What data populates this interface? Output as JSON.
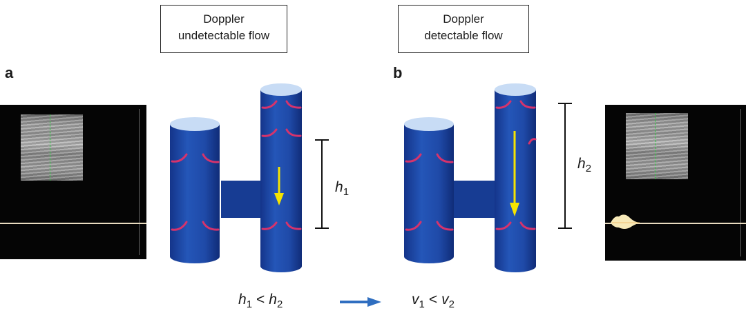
{
  "top_labels": {
    "left_line1": "Doppler",
    "left_line2": "undetectable flow",
    "right_line1": "Doppler",
    "right_line2": "detectable flow"
  },
  "panels": {
    "a": "a",
    "b": "b"
  },
  "heights": {
    "h1_var": "h",
    "h1_sub": "1",
    "h2_var": "h",
    "h2_sub": "2"
  },
  "relation": {
    "h_left_var": "h",
    "h_left_sub": "1",
    "h_op": "<",
    "h_right_var": "h",
    "h_right_sub": "2",
    "v_left_var": "v",
    "v_left_sub": "1",
    "v_op": "<",
    "v_right_var": "v",
    "v_right_sub": "2"
  },
  "colors": {
    "vessel": "#1f4aa8",
    "vessel_dark": "#163a8a",
    "vessel_top": "#c8dcf5",
    "valve": "#d6336c",
    "flow_arrow": "#f5e400",
    "relation_arrow": "#2f6ec0"
  },
  "icons": [
    "doppler-spectrum-left",
    "doppler-spectrum-right",
    "flow-arrow",
    "valve-cusps"
  ]
}
